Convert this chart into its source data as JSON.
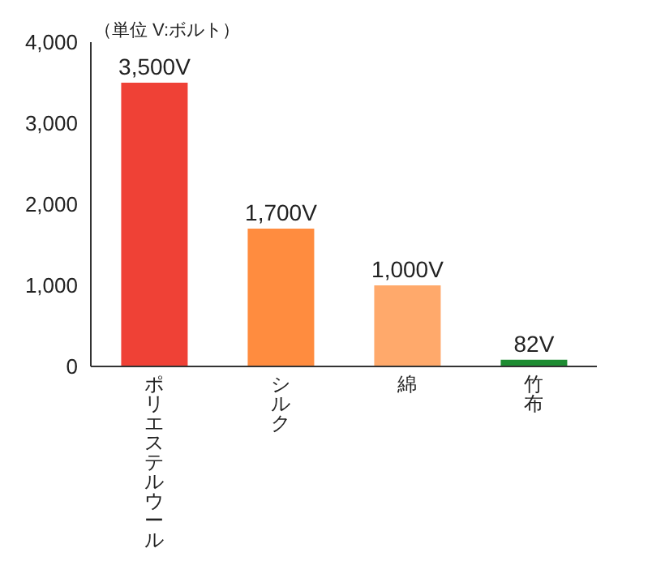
{
  "chart_data": {
    "type": "bar",
    "categories": [
      "ポリエステルウール",
      "シルク",
      "綿",
      "竹布"
    ],
    "values": [
      3500,
      1700,
      1000,
      82
    ],
    "colors": [
      "#ef4136",
      "#ff8c3f",
      "#ffa96b",
      "#1e8c32"
    ],
    "value_labels": [
      "3,500V",
      "1,700V",
      "1,000V",
      "82V"
    ],
    "ylim": [
      0,
      4000
    ],
    "yticks": [
      {
        "value": 0,
        "label": "0"
      },
      {
        "value": 1000,
        "label": "1,000"
      },
      {
        "value": 2000,
        "label": "2,000"
      },
      {
        "value": 3000,
        "label": "3,000"
      },
      {
        "value": 4000,
        "label": "4,000"
      }
    ],
    "grid": false,
    "legend": false,
    "annotations": [
      "（単位 V:ボルト）"
    ]
  }
}
